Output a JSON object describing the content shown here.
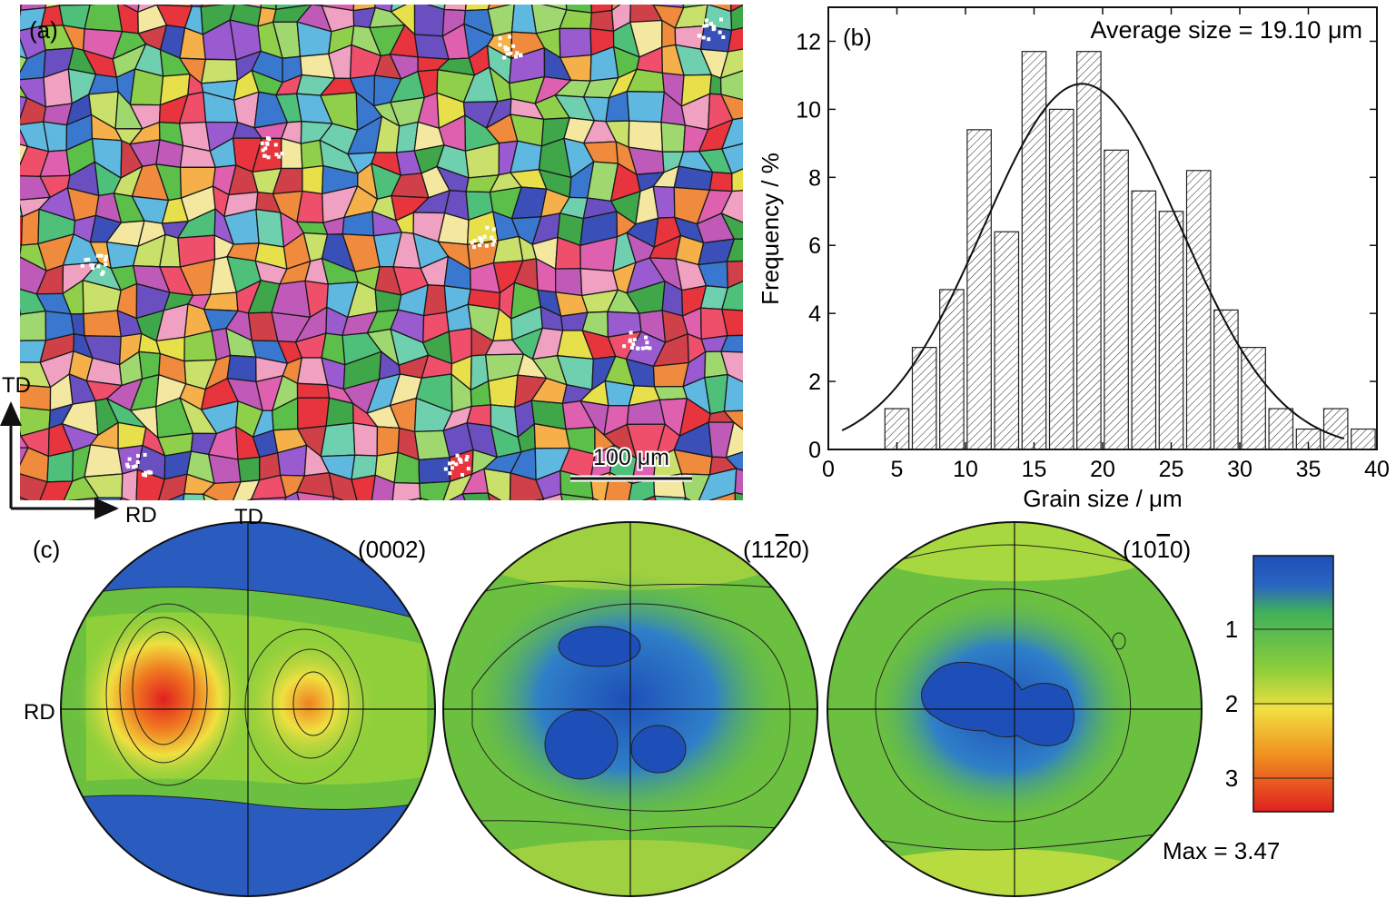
{
  "panel_a": {
    "label": "(a)",
    "scale_bar_label": "100 μm",
    "axis_td": "TD",
    "axis_rd": "RD",
    "grain_palette": [
      "#e8343c",
      "#ef4f6b",
      "#f08a3c",
      "#f5b04a",
      "#e8e04a",
      "#c9e06a",
      "#8fcf4a",
      "#5cbf4a",
      "#3fa64a",
      "#4fc07a",
      "#6fd0b0",
      "#5fb8e0",
      "#3a78d0",
      "#3a4fb8",
      "#6a4fc0",
      "#9a5ad0",
      "#c05ab8",
      "#e060b0",
      "#f0a0c0",
      "#f4e8a0",
      "#a0d870",
      "#d04048"
    ],
    "white_color": "#ffffff"
  },
  "panel_b": {
    "label": "(b)",
    "annotation": "Average size = 19.10 μm"
  },
  "chart_data": {
    "type": "bar",
    "xlabel": "Grain size / μm",
    "ylabel": "Frequency / %",
    "xlim": [
      0,
      40
    ],
    "ylim": [
      0,
      13
    ],
    "xticks": [
      "0",
      "5",
      "10",
      "15",
      "20",
      "25",
      "30",
      "35",
      "40"
    ],
    "yticks": [
      "0",
      "2",
      "4",
      "6",
      "8",
      "10",
      "12"
    ],
    "bar_centers": [
      5,
      7,
      9,
      11,
      13,
      15,
      17,
      19,
      21,
      23,
      25,
      27,
      29,
      31,
      33,
      35,
      37,
      39
    ],
    "values": [
      1.2,
      3.0,
      4.7,
      9.4,
      6.4,
      11.7,
      10.0,
      11.7,
      8.8,
      7.6,
      7.0,
      8.2,
      4.1,
      3.0,
      1.2,
      0.6,
      1.2,
      0.6
    ],
    "fit_curve": {
      "type": "gaussian",
      "mean": 18.5,
      "sigma": 7.2,
      "peak": 10.75
    }
  },
  "panel_c": {
    "label": "(c)",
    "pole_figures": [
      {
        "title": "(0002)",
        "axis_td": "TD",
        "axis_rd": "RD"
      },
      {
        "title": "(11",
        "overbar": "2",
        "title_end": "0)"
      },
      {
        "title": "(10",
        "overbar": "1",
        "title_end": "0)"
      }
    ],
    "colorbar": {
      "ticks": [
        "1",
        "2",
        "3"
      ],
      "max_label": "Max = 3.47",
      "colors": [
        "#1e4fb8",
        "#2f8fd0",
        "#3fb84a",
        "#7fcf3a",
        "#f0e040",
        "#f09020",
        "#e02020"
      ]
    }
  }
}
